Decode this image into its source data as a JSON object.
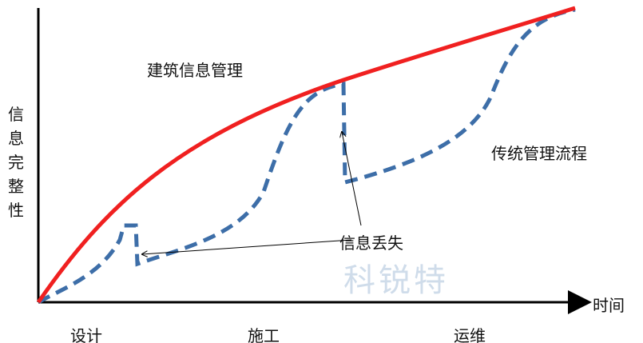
{
  "axes": {
    "y_label": "信息完整性",
    "x_label": "时间"
  },
  "phases": [
    "设计",
    "施工",
    "运维"
  ],
  "curves": {
    "bim": "建筑信息管理",
    "traditional": "传统管理流程"
  },
  "annotation": "信息丢失",
  "watermark": "科锐特"
}
